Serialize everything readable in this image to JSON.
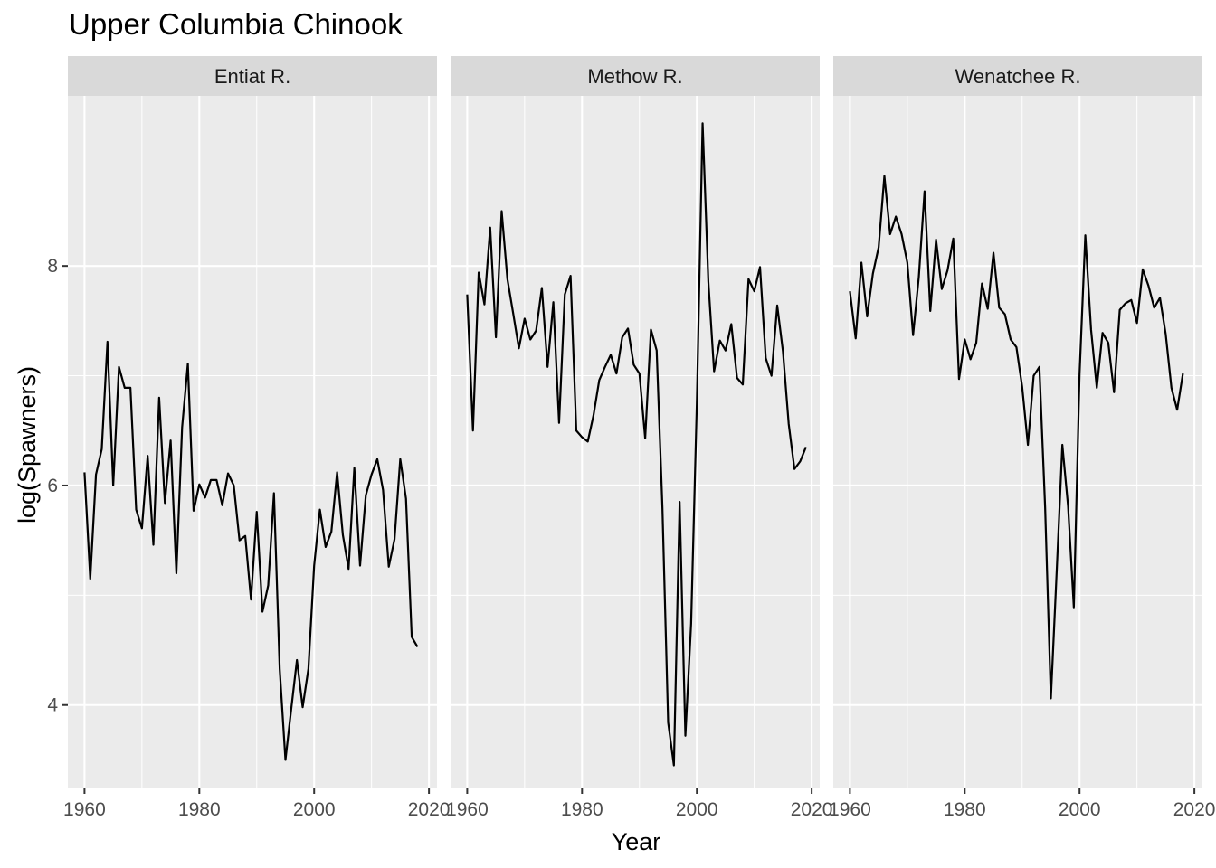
{
  "chart_data": {
    "type": "line",
    "title": "Upper Columbia Chinook",
    "xlabel": "Year",
    "ylabel": "log(Spawners)",
    "xlim": [
      1957.1,
      2021.4
    ],
    "ylim": [
      3.24,
      9.55
    ],
    "x_ticks": [
      1960,
      1980,
      2000,
      2020
    ],
    "x_tick_labels": [
      "1960",
      "1980",
      "2000",
      "2020"
    ],
    "y_ticks": [
      4,
      6,
      8
    ],
    "y_tick_labels": [
      "4",
      "6",
      "8"
    ],
    "grid": true,
    "legend": "none",
    "panels": [
      {
        "name": "Entiat R.",
        "points": [
          [
            1960,
            6.12
          ],
          [
            1961,
            5.15
          ],
          [
            1962,
            6.1
          ],
          [
            1963,
            6.33
          ],
          [
            1964,
            7.31
          ],
          [
            1965,
            6.0
          ],
          [
            1966,
            7.08
          ],
          [
            1967,
            6.89
          ],
          [
            1968,
            6.89
          ],
          [
            1969,
            5.78
          ],
          [
            1970,
            5.61
          ],
          [
            1971,
            6.27
          ],
          [
            1972,
            5.46
          ],
          [
            1973,
            6.8
          ],
          [
            1974,
            5.84
          ],
          [
            1975,
            6.41
          ],
          [
            1976,
            5.2
          ],
          [
            1977,
            6.53
          ],
          [
            1978,
            7.11
          ],
          [
            1979,
            5.77
          ],
          [
            1980,
            6.01
          ],
          [
            1981,
            5.89
          ],
          [
            1982,
            6.05
          ],
          [
            1983,
            6.05
          ],
          [
            1984,
            5.82
          ],
          [
            1985,
            6.11
          ],
          [
            1986,
            6.0
          ],
          [
            1987,
            5.5
          ],
          [
            1988,
            5.54
          ],
          [
            1989,
            4.96
          ],
          [
            1990,
            5.76
          ],
          [
            1991,
            4.85
          ],
          [
            1992,
            5.09
          ],
          [
            1993,
            5.93
          ],
          [
            1994,
            4.33
          ],
          [
            1995,
            3.5
          ],
          [
            1996,
            3.96
          ],
          [
            1997,
            4.41
          ],
          [
            1998,
            3.98
          ],
          [
            1999,
            4.33
          ],
          [
            2000,
            5.27
          ],
          [
            2001,
            5.78
          ],
          [
            2002,
            5.44
          ],
          [
            2003,
            5.58
          ],
          [
            2004,
            6.12
          ],
          [
            2005,
            5.55
          ],
          [
            2006,
            5.24
          ],
          [
            2007,
            6.16
          ],
          [
            2008,
            5.27
          ],
          [
            2009,
            5.91
          ],
          [
            2010,
            6.1
          ],
          [
            2011,
            6.24
          ],
          [
            2012,
            5.96
          ],
          [
            2013,
            5.26
          ],
          [
            2014,
            5.51
          ],
          [
            2015,
            6.24
          ],
          [
            2016,
            5.88
          ],
          [
            2017,
            4.62
          ],
          [
            2018,
            4.53
          ]
        ]
      },
      {
        "name": "Methow R.",
        "points": [
          [
            1960,
            7.74
          ],
          [
            1961,
            6.5
          ],
          [
            1962,
            7.94
          ],
          [
            1963,
            7.65
          ],
          [
            1964,
            8.35
          ],
          [
            1965,
            7.35
          ],
          [
            1966,
            8.5
          ],
          [
            1967,
            7.88
          ],
          [
            1968,
            7.57
          ],
          [
            1969,
            7.25
          ],
          [
            1970,
            7.52
          ],
          [
            1971,
            7.33
          ],
          [
            1972,
            7.41
          ],
          [
            1973,
            7.8
          ],
          [
            1974,
            7.08
          ],
          [
            1975,
            7.67
          ],
          [
            1976,
            6.57
          ],
          [
            1977,
            7.74
          ],
          [
            1978,
            7.91
          ],
          [
            1979,
            6.5
          ],
          [
            1980,
            6.44
          ],
          [
            1981,
            6.4
          ],
          [
            1982,
            6.64
          ],
          [
            1983,
            6.96
          ],
          [
            1984,
            7.08
          ],
          [
            1985,
            7.19
          ],
          [
            1986,
            7.02
          ],
          [
            1987,
            7.35
          ],
          [
            1988,
            7.43
          ],
          [
            1989,
            7.1
          ],
          [
            1990,
            7.02
          ],
          [
            1991,
            6.43
          ],
          [
            1992,
            7.42
          ],
          [
            1993,
            7.23
          ],
          [
            1994,
            5.8
          ],
          [
            1995,
            3.84
          ],
          [
            1996,
            3.45
          ],
          [
            1997,
            5.85
          ],
          [
            1998,
            3.72
          ],
          [
            1999,
            4.74
          ],
          [
            2000,
            6.75
          ],
          [
            2001,
            9.3
          ],
          [
            2002,
            7.86
          ],
          [
            2003,
            7.04
          ],
          [
            2004,
            7.32
          ],
          [
            2005,
            7.23
          ],
          [
            2006,
            7.47
          ],
          [
            2007,
            6.98
          ],
          [
            2008,
            6.92
          ],
          [
            2009,
            7.88
          ],
          [
            2010,
            7.77
          ],
          [
            2011,
            7.99
          ],
          [
            2012,
            7.16
          ],
          [
            2013,
            7.0
          ],
          [
            2014,
            7.64
          ],
          [
            2015,
            7.22
          ],
          [
            2016,
            6.56
          ],
          [
            2017,
            6.15
          ],
          [
            2018,
            6.22
          ],
          [
            2019,
            6.35
          ]
        ]
      },
      {
        "name": "Wenatchee R.",
        "points": [
          [
            1960,
            7.77
          ],
          [
            1961,
            7.34
          ],
          [
            1962,
            8.03
          ],
          [
            1963,
            7.54
          ],
          [
            1964,
            7.93
          ],
          [
            1965,
            8.17
          ],
          [
            1966,
            8.82
          ],
          [
            1967,
            8.29
          ],
          [
            1968,
            8.45
          ],
          [
            1969,
            8.29
          ],
          [
            1970,
            8.03
          ],
          [
            1971,
            7.37
          ],
          [
            1972,
            7.9
          ],
          [
            1973,
            8.68
          ],
          [
            1974,
            7.59
          ],
          [
            1975,
            8.24
          ],
          [
            1976,
            7.79
          ],
          [
            1977,
            7.96
          ],
          [
            1978,
            8.25
          ],
          [
            1979,
            6.97
          ],
          [
            1980,
            7.33
          ],
          [
            1981,
            7.15
          ],
          [
            1982,
            7.3
          ],
          [
            1983,
            7.84
          ],
          [
            1984,
            7.61
          ],
          [
            1985,
            8.12
          ],
          [
            1986,
            7.62
          ],
          [
            1987,
            7.56
          ],
          [
            1988,
            7.33
          ],
          [
            1989,
            7.26
          ],
          [
            1990,
            6.9
          ],
          [
            1991,
            6.37
          ],
          [
            1992,
            7.0
          ],
          [
            1993,
            7.08
          ],
          [
            1994,
            5.8
          ],
          [
            1995,
            4.06
          ],
          [
            1996,
            5.2
          ],
          [
            1997,
            6.37
          ],
          [
            1998,
            5.81
          ],
          [
            1999,
            4.89
          ],
          [
            2000,
            7.02
          ],
          [
            2001,
            8.28
          ],
          [
            2002,
            7.42
          ],
          [
            2003,
            6.89
          ],
          [
            2004,
            7.39
          ],
          [
            2005,
            7.3
          ],
          [
            2006,
            6.85
          ],
          [
            2007,
            7.6
          ],
          [
            2008,
            7.66
          ],
          [
            2009,
            7.69
          ],
          [
            2010,
            7.48
          ],
          [
            2011,
            7.97
          ],
          [
            2012,
            7.82
          ],
          [
            2013,
            7.62
          ],
          [
            2014,
            7.71
          ],
          [
            2015,
            7.38
          ],
          [
            2016,
            6.89
          ],
          [
            2017,
            6.69
          ],
          [
            2018,
            7.02
          ]
        ]
      }
    ]
  }
}
